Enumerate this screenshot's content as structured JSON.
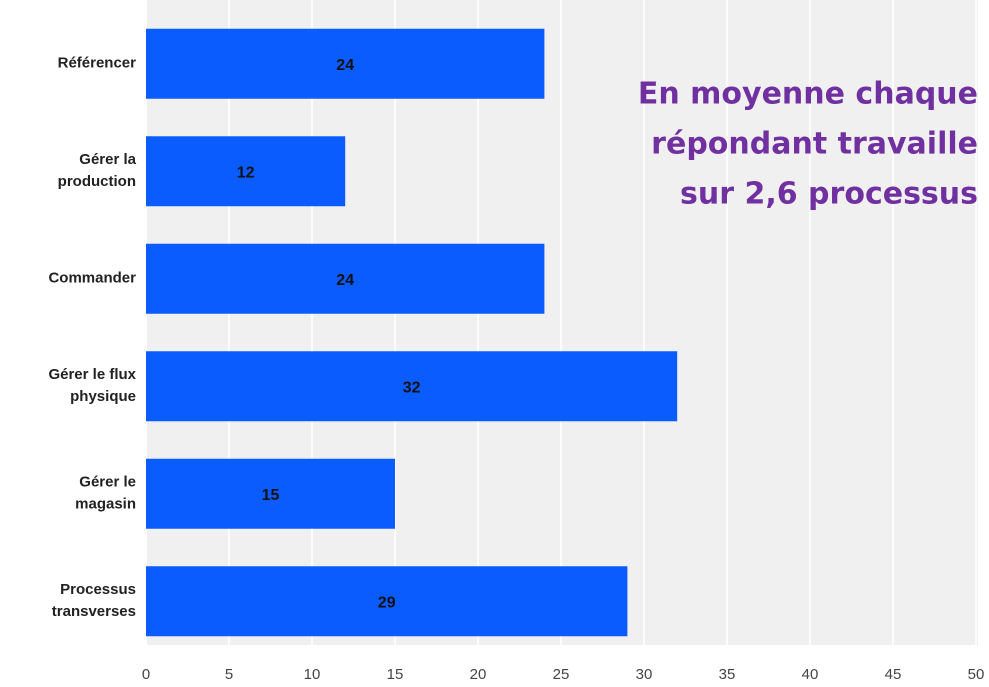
{
  "chart_data": {
    "type": "barh",
    "categories": [
      [
        "Référencer"
      ],
      [
        "Gérer la",
        "production"
      ],
      [
        "Commander"
      ],
      [
        "Gérer le flux",
        "physique"
      ],
      [
        "Gérer le",
        "magasin"
      ],
      [
        "Processus",
        "transverses"
      ]
    ],
    "values": [
      24,
      12,
      24,
      32,
      15,
      29
    ],
    "color": "#0b5cff",
    "xlim": [
      0,
      50
    ],
    "xticks": [
      0,
      5,
      10,
      15,
      20,
      25,
      30,
      35,
      40,
      45,
      50
    ],
    "grid": true,
    "annotation": [
      "En moyenne chaque",
      "répondant travaille",
      "sur 2,6 processus"
    ],
    "annotation_color": "#7030a0"
  }
}
